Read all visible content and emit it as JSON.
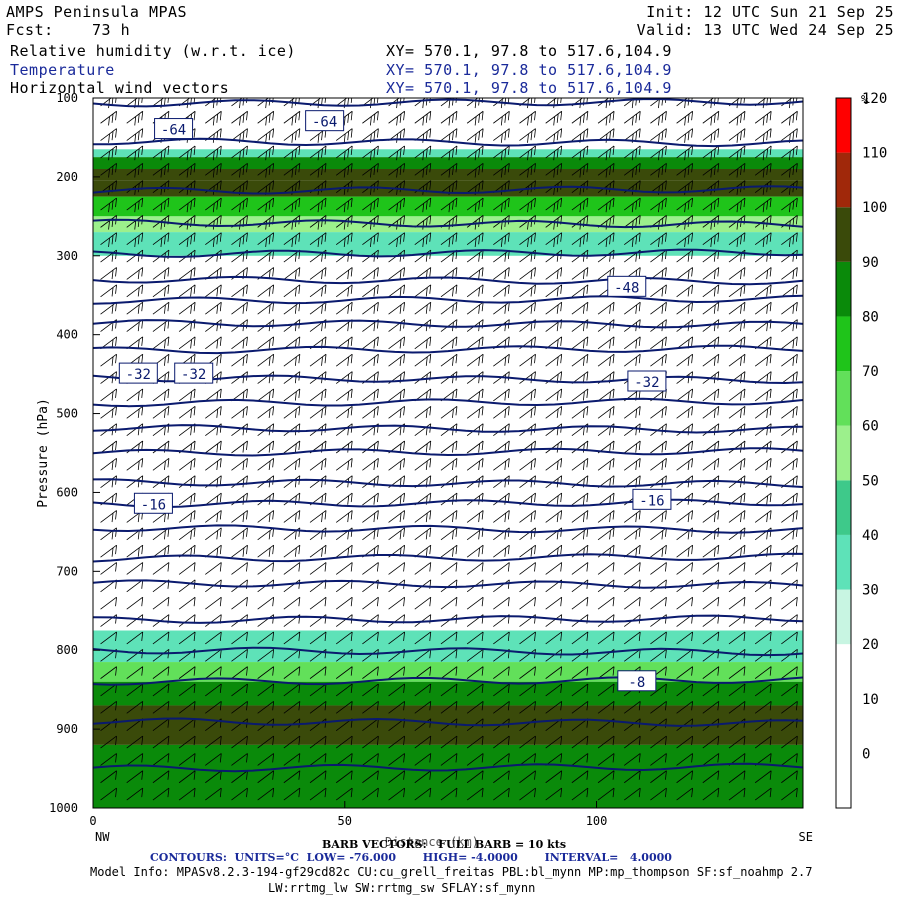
{
  "header": {
    "model": "AMPS Peninsula MPAS",
    "fcst_label": "Fcst:",
    "fcst_value": "73 h",
    "init": "Init: 12 UTC Sun 21 Sep 25",
    "valid": "Valid: 13 UTC Wed 24 Sep 25",
    "fields": [
      {
        "label": "Relative humidity (w.r.t. ice)",
        "xy": "XY= 570.1, 97.8 to 517.6,104.9"
      },
      {
        "label": "Temperature",
        "xy": "XY= 570.1, 97.8 to 517.6,104.9"
      },
      {
        "label": "Horizontal wind vectors",
        "xy": "XY= 570.1, 97.8 to 517.6,104.9"
      }
    ]
  },
  "footer": {
    "barb_label": "BARB VECTORS:   FULL BARB = 10 kts",
    "distance_label": "Distance (km)",
    "contours": "CONTOURS:  UNITS=°C  LOW= -76.000       HIGH= -4.0000       INTERVAL=   4.0000",
    "model_info": "Model Info: MPASv8.2.3-194-gf29cd82c CU:cu_grell_freitas PBL:bl_mynn MP:mp_thompson SF:sf_noahmp 2.7",
    "model_info2": "LW:rrtmg_lw SW:rrtmg_sw SFLAY:sf_mynn"
  },
  "colors": {
    "contour": "#0a1a6e",
    "barb": "#000000",
    "rh_bands": [
      "#ffffff",
      "#ffffff",
      "#ffffff",
      "#ffffff",
      "#c8f5e2",
      "#5ee2b8",
      "#3ec98a",
      "#9cf08c",
      "#62e05a",
      "#1fc41a",
      "#0a8a0a",
      "#0f6a0a",
      "#3a4a0a",
      "#a0280a",
      "#ff0000"
    ]
  },
  "chart_data": {
    "type": "heatmap",
    "title": "Relative humidity (w.r.t. ice), Temperature, Horizontal wind vectors",
    "xlabel": "Distance (km)",
    "ylabel": "Pressure (hPa)",
    "xlim": [
      0,
      141
    ],
    "ylim": [
      1000,
      100
    ],
    "x_ticks": [
      0,
      50,
      100
    ],
    "y_ticks": [
      100,
      200,
      300,
      400,
      500,
      600,
      700,
      800,
      900,
      1000
    ],
    "x_end_labels": {
      "left": "NW",
      "right": "SE"
    },
    "colorbar": {
      "unit": "%",
      "levels": [
        0,
        10,
        20,
        30,
        40,
        50,
        60,
        70,
        80,
        90,
        100,
        110,
        120
      ],
      "band_colors": [
        "#ffffff",
        "#ffffff",
        "#ffffff",
        "#c8f5e2",
        "#5ee2b8",
        "#3ec98a",
        "#9cf08c",
        "#62e05a",
        "#1fc41a",
        "#0a8a0a",
        "#3a4a0a",
        "#a0280a",
        "#ff0000"
      ]
    },
    "rh_layers": [
      {
        "p_top": 165,
        "p_bottom": 175,
        "rh": 45
      },
      {
        "p_top": 175,
        "p_bottom": 195,
        "rh": 95
      },
      {
        "p_top": 190,
        "p_bottom": 205,
        "rh": 108
      },
      {
        "p_top": 205,
        "p_bottom": 225,
        "rh": 100
      },
      {
        "p_top": 225,
        "p_bottom": 250,
        "rh": 85
      },
      {
        "p_top": 250,
        "p_bottom": 270,
        "rh": 65
      },
      {
        "p_top": 270,
        "p_bottom": 300,
        "rh": 45
      },
      {
        "p_top": 775,
        "p_bottom": 815,
        "rh": 45
      },
      {
        "p_top": 815,
        "p_bottom": 840,
        "rh": 75
      },
      {
        "p_top": 840,
        "p_bottom": 870,
        "rh": 95
      },
      {
        "p_top": 870,
        "p_bottom": 920,
        "rh": 100
      },
      {
        "p_top": 920,
        "p_bottom": 1000,
        "rh": 95
      }
    ],
    "temperature_labels": [
      {
        "value": "-64",
        "x": 16,
        "p": 140
      },
      {
        "value": "-64",
        "x": 46,
        "p": 130
      },
      {
        "value": "-48",
        "x": 106,
        "p": 340
      },
      {
        "value": "-32",
        "x": 9,
        "p": 450
      },
      {
        "value": "-32",
        "x": 20,
        "p": 450
      },
      {
        "value": "-32",
        "x": 110,
        "p": 460
      },
      {
        "value": "-16",
        "x": 12,
        "p": 615
      },
      {
        "value": "-16",
        "x": 111,
        "p": 610
      },
      {
        "value": "-8",
        "x": 108,
        "p": 840
      }
    ],
    "isotherm_pressures": [
      107,
      155,
      218,
      258,
      298,
      330,
      357,
      385,
      420,
      455,
      487,
      518,
      550,
      587,
      615,
      645,
      684,
      715,
      762,
      800,
      840,
      890,
      950
    ]
  }
}
